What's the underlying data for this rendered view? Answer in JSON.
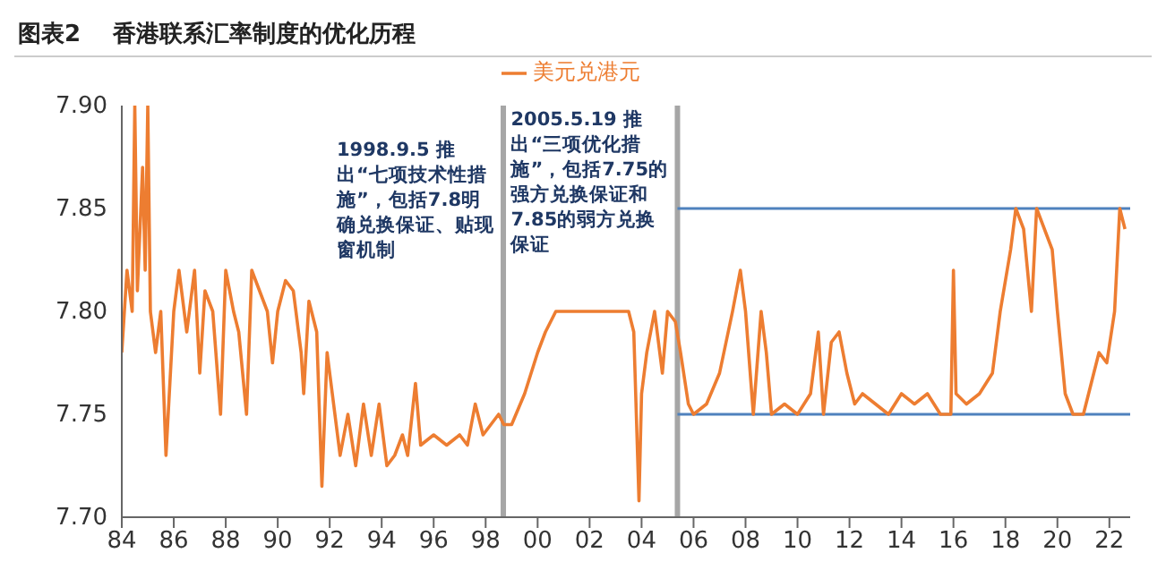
{
  "chart_data": {
    "type": "line",
    "title": "图表2    香港联系汇率制度的优化历程",
    "x": [
      1984.0,
      1984.2,
      1984.4,
      1984.5,
      1984.6,
      1984.8,
      1984.9,
      1985.0,
      1985.1,
      1985.3,
      1985.5,
      1985.7,
      1986.0,
      1986.2,
      1986.5,
      1986.8,
      1987.0,
      1987.2,
      1987.5,
      1987.8,
      1988.0,
      1988.3,
      1988.5,
      1988.8,
      1989.0,
      1989.3,
      1989.6,
      1989.8,
      1990.0,
      1990.3,
      1990.6,
      1990.9,
      1991.0,
      1991.2,
      1991.5,
      1991.7,
      1991.9,
      1992.1,
      1992.4,
      1992.7,
      1993.0,
      1993.3,
      1993.6,
      1993.9,
      1994.2,
      1994.5,
      1994.8,
      1995.0,
      1995.3,
      1995.5,
      1996.0,
      1996.5,
      1997.0,
      1997.3,
      1997.6,
      1997.9,
      1998.2,
      1998.5,
      1998.7,
      1999.0,
      1999.5,
      2000.0,
      2000.3,
      2000.7,
      2001.0,
      2002.0,
      2002.5,
      2003.0,
      2003.5,
      2003.7,
      2003.9,
      2004.0,
      2004.2,
      2004.5,
      2004.8,
      2005.0,
      2005.3,
      2005.5,
      2005.8,
      2006.0,
      2006.5,
      2007.0,
      2007.5,
      2007.8,
      2008.0,
      2008.3,
      2008.6,
      2008.8,
      2009.0,
      2009.5,
      2010.0,
      2010.5,
      2010.8,
      2011.0,
      2011.3,
      2011.6,
      2011.9,
      2012.2,
      2012.5,
      2013.0,
      2013.5,
      2014.0,
      2014.5,
      2015.0,
      2015.5,
      2015.9,
      2016.0,
      2016.1,
      2016.5,
      2017.0,
      2017.5,
      2017.8,
      2018.2,
      2018.4,
      2018.7,
      2019.0,
      2019.2,
      2019.5,
      2019.8,
      2020.0,
      2020.3,
      2020.6,
      2021.0,
      2021.3,
      2021.6,
      2021.9,
      2022.2,
      2022.4,
      2022.6
    ],
    "series": [
      {
        "name": "美元兑港元",
        "color": "#ed7d31",
        "values": [
          7.78,
          7.82,
          7.8,
          7.9,
          7.81,
          7.87,
          7.82,
          7.9,
          7.8,
          7.78,
          7.8,
          7.73,
          7.8,
          7.82,
          7.79,
          7.82,
          7.77,
          7.81,
          7.8,
          7.75,
          7.82,
          7.8,
          7.79,
          7.75,
          7.82,
          7.81,
          7.8,
          7.775,
          7.8,
          7.815,
          7.81,
          7.78,
          7.76,
          7.805,
          7.79,
          7.715,
          7.78,
          7.76,
          7.73,
          7.75,
          7.725,
          7.755,
          7.73,
          7.755,
          7.725,
          7.73,
          7.74,
          7.73,
          7.765,
          7.735,
          7.74,
          7.735,
          7.74,
          7.735,
          7.755,
          7.74,
          7.745,
          7.75,
          7.745,
          7.745,
          7.76,
          7.78,
          7.79,
          7.8,
          7.8,
          7.8,
          7.8,
          7.8,
          7.8,
          7.79,
          7.708,
          7.76,
          7.78,
          7.8,
          7.77,
          7.8,
          7.795,
          7.78,
          7.755,
          7.75,
          7.755,
          7.77,
          7.8,
          7.82,
          7.8,
          7.75,
          7.8,
          7.78,
          7.75,
          7.755,
          7.75,
          7.76,
          7.79,
          7.75,
          7.785,
          7.79,
          7.77,
          7.755,
          7.76,
          7.755,
          7.75,
          7.76,
          7.755,
          7.76,
          7.75,
          7.75,
          7.82,
          7.76,
          7.755,
          7.76,
          7.77,
          7.8,
          7.83,
          7.85,
          7.84,
          7.8,
          7.85,
          7.84,
          7.83,
          7.8,
          7.76,
          7.75,
          7.75,
          7.765,
          7.78,
          7.775,
          7.8,
          7.85,
          7.84
        ]
      }
    ],
    "xlim": [
      1984,
      2022.8
    ],
    "xticks": [
      {
        "value": 1984,
        "label": "84"
      },
      {
        "value": 1986,
        "label": "86"
      },
      {
        "value": 1988,
        "label": "88"
      },
      {
        "value": 1990,
        "label": "90"
      },
      {
        "value": 1992,
        "label": "92"
      },
      {
        "value": 1994,
        "label": "94"
      },
      {
        "value": 1996,
        "label": "96"
      },
      {
        "value": 1998,
        "label": "98"
      },
      {
        "value": 2000,
        "label": "00"
      },
      {
        "value": 2002,
        "label": "02"
      },
      {
        "value": 2004,
        "label": "04"
      },
      {
        "value": 2006,
        "label": "06"
      },
      {
        "value": 2008,
        "label": "08"
      },
      {
        "value": 2010,
        "label": "10"
      },
      {
        "value": 2012,
        "label": "12"
      },
      {
        "value": 2014,
        "label": "14"
      },
      {
        "value": 2016,
        "label": "16"
      },
      {
        "value": 2018,
        "label": "18"
      },
      {
        "value": 2020,
        "label": "20"
      },
      {
        "value": 2022,
        "label": "22"
      }
    ],
    "ylim": [
      7.7,
      7.9
    ],
    "yticks": [
      {
        "value": 7.7,
        "label": "7.70"
      },
      {
        "value": 7.75,
        "label": "7.75"
      },
      {
        "value": 7.8,
        "label": "7.80"
      },
      {
        "value": 7.85,
        "label": "7.85"
      },
      {
        "value": 7.9,
        "label": "7.90"
      }
    ],
    "ref_lines": [
      {
        "axis": "x",
        "value": 1998.68,
        "color": "#a6a6a6"
      },
      {
        "axis": "x",
        "value": 2005.38,
        "color": "#a6a6a6"
      },
      {
        "axis": "y",
        "value": 7.75,
        "color": "#4f81bd"
      },
      {
        "axis": "y",
        "value": 7.85,
        "color": "#4f81bd"
      }
    ],
    "annotations": [
      {
        "text": "1998.9.5 推出“七项技术性措施”，包括7.8明确兑换保证、贴现窗机制",
        "x": 1998.68,
        "y": 7.885
      },
      {
        "text": "2005.5.19 推出“三项优化措施”，包括7.75的强方兑换保证和7.85的弱方兑换保证",
        "x": 2005.38,
        "y": 7.9
      }
    ],
    "grid": false,
    "legend": "top",
    "marker": "none",
    "line_style": "solid"
  }
}
